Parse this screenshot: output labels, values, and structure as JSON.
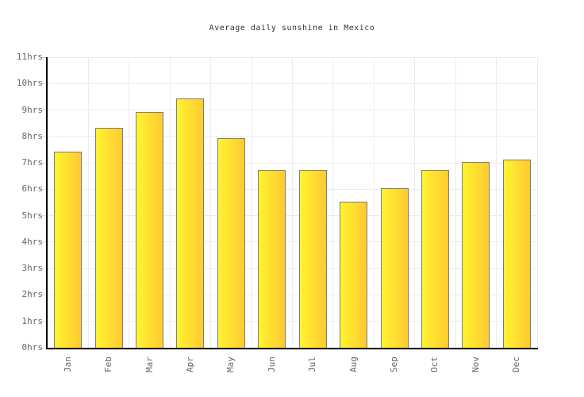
{
  "chart_data": {
    "type": "bar",
    "title": "Average daily sunshine in Mexico",
    "categories": [
      "Jan",
      "Feb",
      "Mar",
      "Apr",
      "May",
      "Jun",
      "Jul",
      "Aug",
      "Sep",
      "Oct",
      "Nov",
      "Dec"
    ],
    "values": [
      7.4,
      8.3,
      8.9,
      9.4,
      7.9,
      6.7,
      6.7,
      5.5,
      6.0,
      6.7,
      7.0,
      7.1
    ],
    "unit": "hrs",
    "ylim": [
      0,
      11
    ],
    "ytick_step": 1,
    "ytick_labels": [
      "0hrs",
      "1hrs",
      "2hrs",
      "3hrs",
      "4hrs",
      "5hrs",
      "6hrs",
      "7hrs",
      "8hrs",
      "9hrs",
      "10hrs",
      "11hrs"
    ],
    "grid": true,
    "legend": false,
    "xlabel": "",
    "ylabel": "",
    "colors": {
      "bar_gradient_left": "#fff42e",
      "bar_gradient_right": "#ffc933",
      "bar_border": "#7d7d7d",
      "axis_line": "#000000",
      "gridline": "#ececec",
      "tick_label_color": "#666666",
      "title_color": "#333333",
      "background": "#ffffff"
    }
  }
}
